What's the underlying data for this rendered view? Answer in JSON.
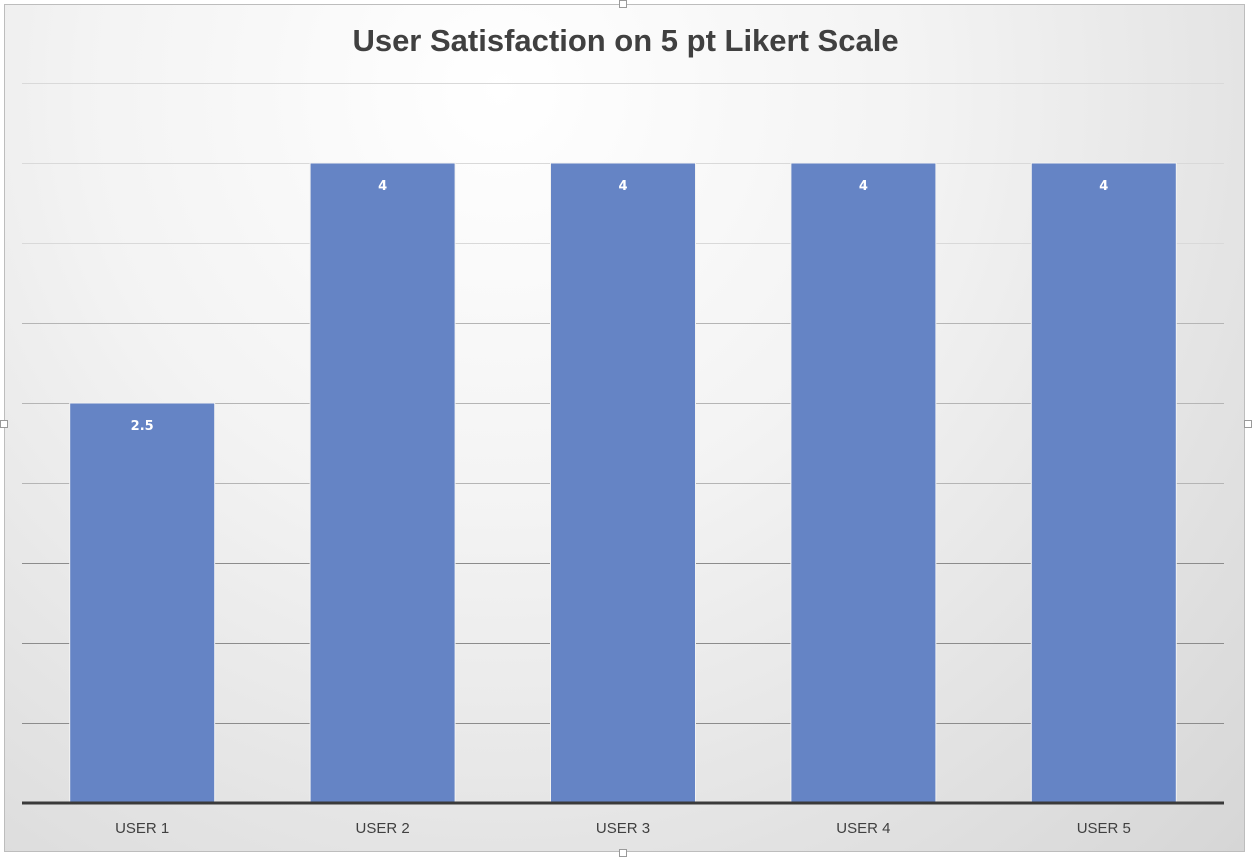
{
  "chart_data": {
    "type": "bar",
    "title": "User Satisfaction on 5 pt Likert Scale",
    "xlabel": "",
    "ylabel": "",
    "categories": [
      "USER 1",
      "USER 2",
      "USER 3",
      "USER 4",
      "USER 5"
    ],
    "values": [
      2.5,
      4,
      4,
      4,
      4
    ],
    "data_labels": [
      "2.5",
      "4",
      "4",
      "4",
      "4"
    ],
    "ylim": [
      0,
      4.5
    ],
    "gridline_step": 0.5,
    "grid": true,
    "legend": "none",
    "bar_color": "#6584c5"
  }
}
